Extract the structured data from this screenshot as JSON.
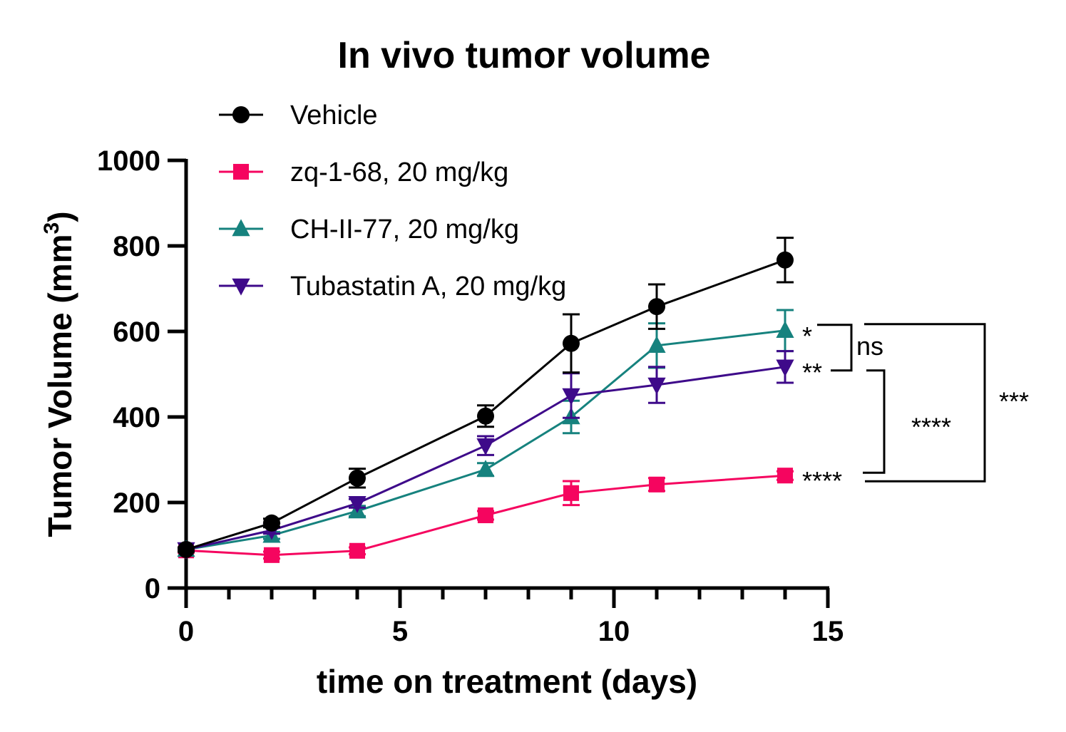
{
  "chart_data": {
    "type": "line",
    "title": "In vivo tumor volume",
    "xlabel": "time on treatment (days)",
    "ylabel": "Tumor Volume (mm",
    "ylabel_superscript": "3",
    "ylabel_suffix": ")",
    "xlim": [
      0,
      15
    ],
    "ylim": [
      0,
      1000
    ],
    "x_major_ticks": [
      0,
      5,
      10,
      15
    ],
    "x_minor_ticks": [
      1,
      2,
      3,
      4,
      6,
      7,
      8,
      9,
      11,
      12,
      13,
      14
    ],
    "y_ticks": [
      0,
      200,
      400,
      600,
      800,
      1000
    ],
    "x_tick_labels": [
      "0",
      "5",
      "10",
      "15"
    ],
    "y_tick_labels": [
      "0",
      "200",
      "400",
      "600",
      "800",
      "1000"
    ],
    "grid": false,
    "legend_position": "top-left",
    "x": [
      0,
      2,
      4,
      7,
      9,
      11,
      14
    ],
    "series": [
      {
        "name": "Vehicle",
        "color": "#000000",
        "marker": "circle",
        "values": [
          90,
          152,
          257,
          402,
          572,
          658,
          767
        ],
        "errors": [
          5,
          10,
          22,
          25,
          68,
          52,
          52
        ]
      },
      {
        "name": "zq-1-68, 20 mg/kg",
        "color": "#F5055F",
        "marker": "square",
        "values": [
          88,
          77,
          87,
          170,
          222,
          242,
          263
        ],
        "errors": [
          5,
          8,
          8,
          10,
          28,
          15,
          10
        ]
      },
      {
        "name": "CH-II-77, 20 mg/kg",
        "color": "#16827E",
        "marker": "triangle-up",
        "values": [
          90,
          123,
          180,
          277,
          400,
          567,
          602
        ],
        "errors": [
          5,
          8,
          12,
          15,
          38,
          52,
          48
        ]
      },
      {
        "name": "Tubastatin A, 20 mg/kg",
        "color": "#3E0A8A",
        "marker": "triangle-down",
        "values": [
          90,
          135,
          198,
          333,
          450,
          475,
          517
        ],
        "errors": [
          5,
          8,
          10,
          22,
          52,
          42,
          37
        ]
      }
    ],
    "annotations": {
      "point_marks": [
        {
          "series": "CH-II-77, 20 mg/kg",
          "label": "*"
        },
        {
          "series": "Tubastatin A, 20 mg/kg",
          "label": "**"
        },
        {
          "series": "zq-1-68, 20 mg/kg",
          "label": "****"
        }
      ],
      "brackets": [
        {
          "between": [
            "CH-II-77, 20 mg/kg",
            "Tubastatin A, 20 mg/kg"
          ],
          "label": "ns"
        },
        {
          "between": [
            "Tubastatin A, 20 mg/kg",
            "zq-1-68, 20 mg/kg"
          ],
          "label": "****"
        },
        {
          "between": [
            "CH-II-77, 20 mg/kg",
            "zq-1-68, 20 mg/kg"
          ],
          "label": "***"
        }
      ]
    }
  }
}
